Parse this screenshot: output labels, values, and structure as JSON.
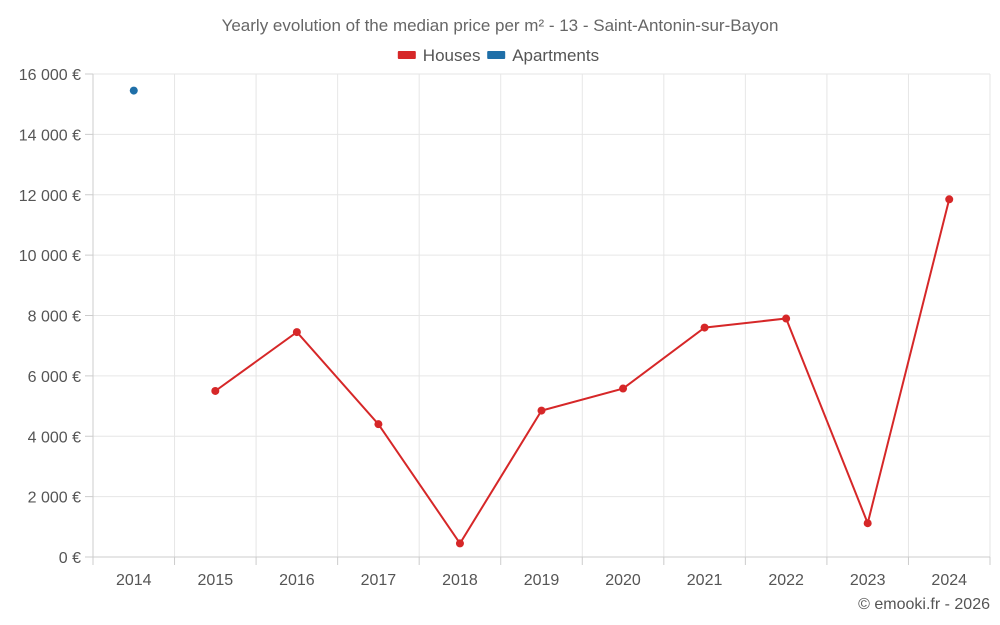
{
  "chart_data": {
    "type": "line",
    "title": "Yearly evolution of the median price per m² - 13 - Saint-Antonin-sur-Bayon",
    "x": [
      "2014",
      "2015",
      "2016",
      "2017",
      "2018",
      "2019",
      "2020",
      "2021",
      "2022",
      "2023",
      "2024"
    ],
    "series": [
      {
        "name": "Houses",
        "color": "#d62728",
        "values": [
          null,
          5500,
          7450,
          4400,
          450,
          4850,
          5580,
          7600,
          7900,
          1120,
          11850
        ]
      },
      {
        "name": "Apartments",
        "color": "#1f6fa8",
        "values": [
          15450,
          null,
          null,
          null,
          null,
          null,
          null,
          null,
          null,
          null,
          null
        ]
      }
    ],
    "ylim": [
      0,
      16000
    ],
    "yticks": [
      0,
      2000,
      4000,
      6000,
      8000,
      10000,
      12000,
      14000,
      16000
    ],
    "ytick_labels": [
      "0 €",
      "2 000 €",
      "4 000 €",
      "6 000 €",
      "8 000 €",
      "10 000 €",
      "12 000 €",
      "14 000 €",
      "16 000 €"
    ],
    "grid": true,
    "legend_position": "top"
  },
  "credit": "© emooki.fr - 2026"
}
